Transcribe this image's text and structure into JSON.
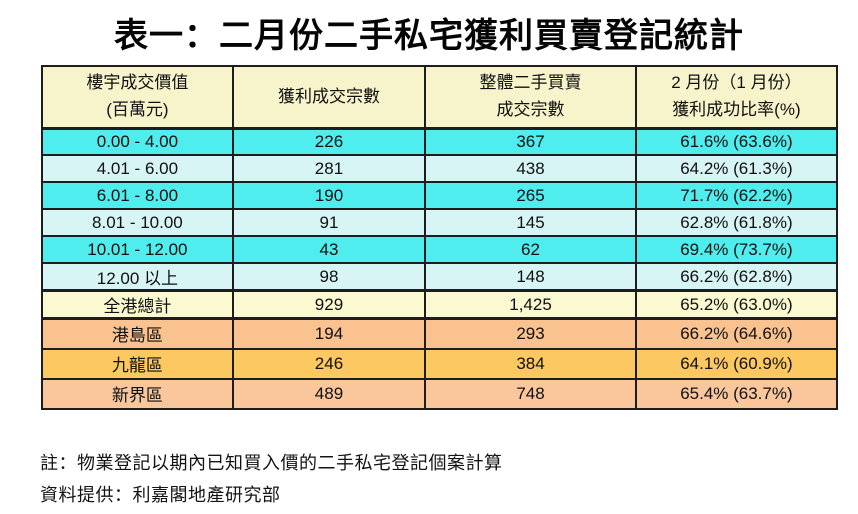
{
  "title": "表一：二月份二手私宅獲利買賣登記統計",
  "table": {
    "headers": [
      {
        "line1": "樓宇成交價值",
        "line2": "(百萬元)"
      },
      {
        "line1": "獲利成交宗數",
        "line2": ""
      },
      {
        "line1": "整體二手買賣",
        "line2": "成交宗數"
      },
      {
        "line1": "2 月份（1 月份）",
        "line2": "獲利成功比率(%)"
      }
    ],
    "rows": [
      {
        "label": "0.00 - 4.00",
        "profit": "226",
        "total": "367",
        "rate": "61.6% (63.6%)"
      },
      {
        "label": "4.01 - 6.00",
        "profit": "281",
        "total": "438",
        "rate": "64.2% (61.3%)"
      },
      {
        "label": "6.01 - 8.00",
        "profit": "190",
        "total": "265",
        "rate": "71.7% (62.2%)"
      },
      {
        "label": "8.01 - 10.00",
        "profit": "91",
        "total": "145",
        "rate": "62.8% (61.8%)"
      },
      {
        "label": "10.01 - 12.00",
        "profit": "43",
        "total": "62",
        "rate": "69.4% (73.7%)"
      },
      {
        "label": "12.00 以上",
        "profit": "98",
        "total": "148",
        "rate": "66.2% (62.8%)"
      },
      {
        "label": "全港總計",
        "profit": "929",
        "total": "1,425",
        "rate": "65.2% (63.0%)"
      },
      {
        "label": "港島區",
        "profit": "194",
        "total": "293",
        "rate": "66.2% (64.6%)"
      },
      {
        "label": "九龍區",
        "profit": "246",
        "total": "384",
        "rate": "64.1% (60.9%)"
      },
      {
        "label": "新界區",
        "profit": "489",
        "total": "748",
        "rate": "65.4% (63.7%)"
      }
    ]
  },
  "footnotes": [
    "註：物業登記以期內已知買入價的二手私宅登記個案計算",
    "資料提供：利嘉閣地產研究部"
  ],
  "colors": {
    "header_bg": "#F7F3CB",
    "cyan_bright": "#4FEDED",
    "cyan_pale": "#D8F5F6",
    "total_bg": "#FAF9D0",
    "peach_a": "#FAC28E",
    "gold_bg": "#FCC861",
    "peach_b": "#FAC79C",
    "border": "#1d1d1d"
  }
}
